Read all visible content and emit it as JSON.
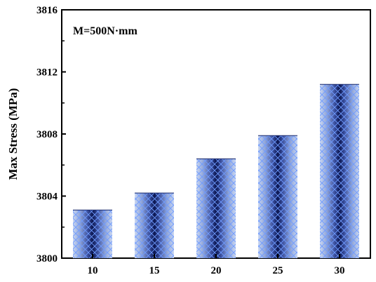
{
  "chart_data": {
    "type": "bar",
    "categories": [
      "10",
      "15",
      "20",
      "25",
      "30"
    ],
    "values": [
      3803.1,
      3804.2,
      3806.4,
      3807.9,
      3811.2
    ],
    "title": "",
    "xlabel": "",
    "ylabel": "Max Stress (MPa)",
    "ylim": [
      3800,
      3816
    ],
    "yticks": [
      "3800",
      "3804",
      "3808",
      "3812",
      "3816"
    ],
    "annotation": "M=500N·mm",
    "grid": false,
    "bar_style": "blue cylinder gradient with crosshatch pattern",
    "colors": {
      "bar_edge": "#0a1550",
      "bar_mid": "#2a3f8f",
      "bar_light": "#cbd8f2",
      "hatch": "#6f9bff"
    }
  }
}
